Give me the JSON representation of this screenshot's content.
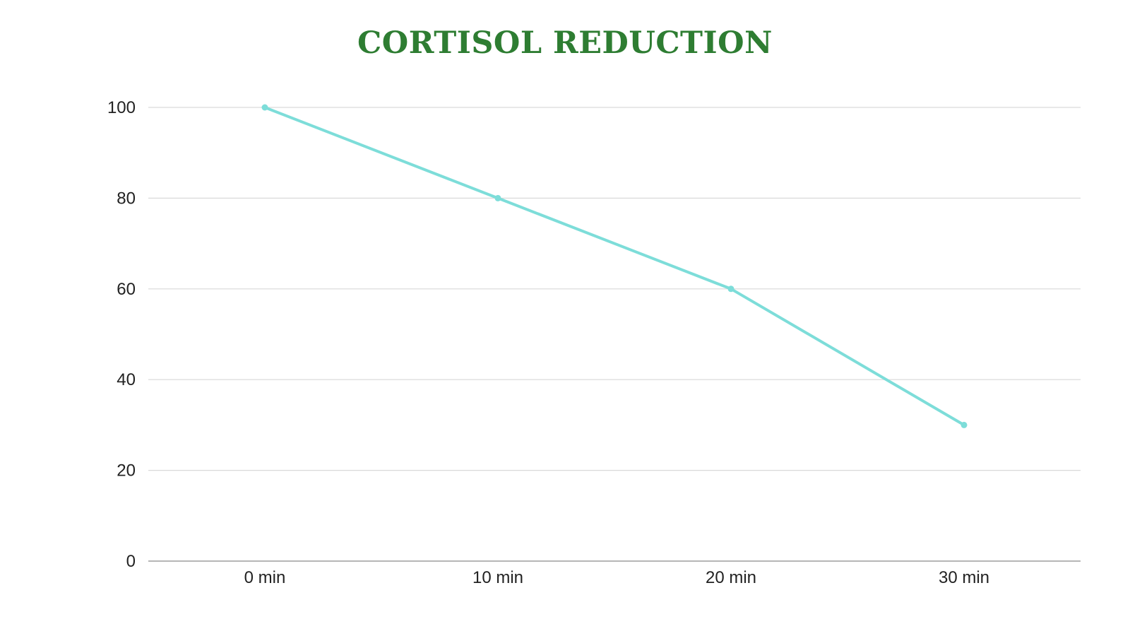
{
  "chart_data": {
    "type": "line",
    "title": "CORTISOL REDUCTION",
    "categories": [
      "0 min",
      "10 min",
      "20 min",
      "30 min"
    ],
    "series": [
      {
        "values": [
          100,
          80,
          60,
          30
        ]
      }
    ],
    "yticks": [
      0,
      20,
      40,
      60,
      80,
      100
    ],
    "ylim": [
      0,
      100
    ],
    "xlabel": "",
    "ylabel": "",
    "grid": true,
    "legend": "none",
    "colors": {
      "title": "#2e7d32",
      "line": "#7dddd9",
      "grid": "#d9d9d9",
      "axis": "#9e9e9e"
    }
  }
}
